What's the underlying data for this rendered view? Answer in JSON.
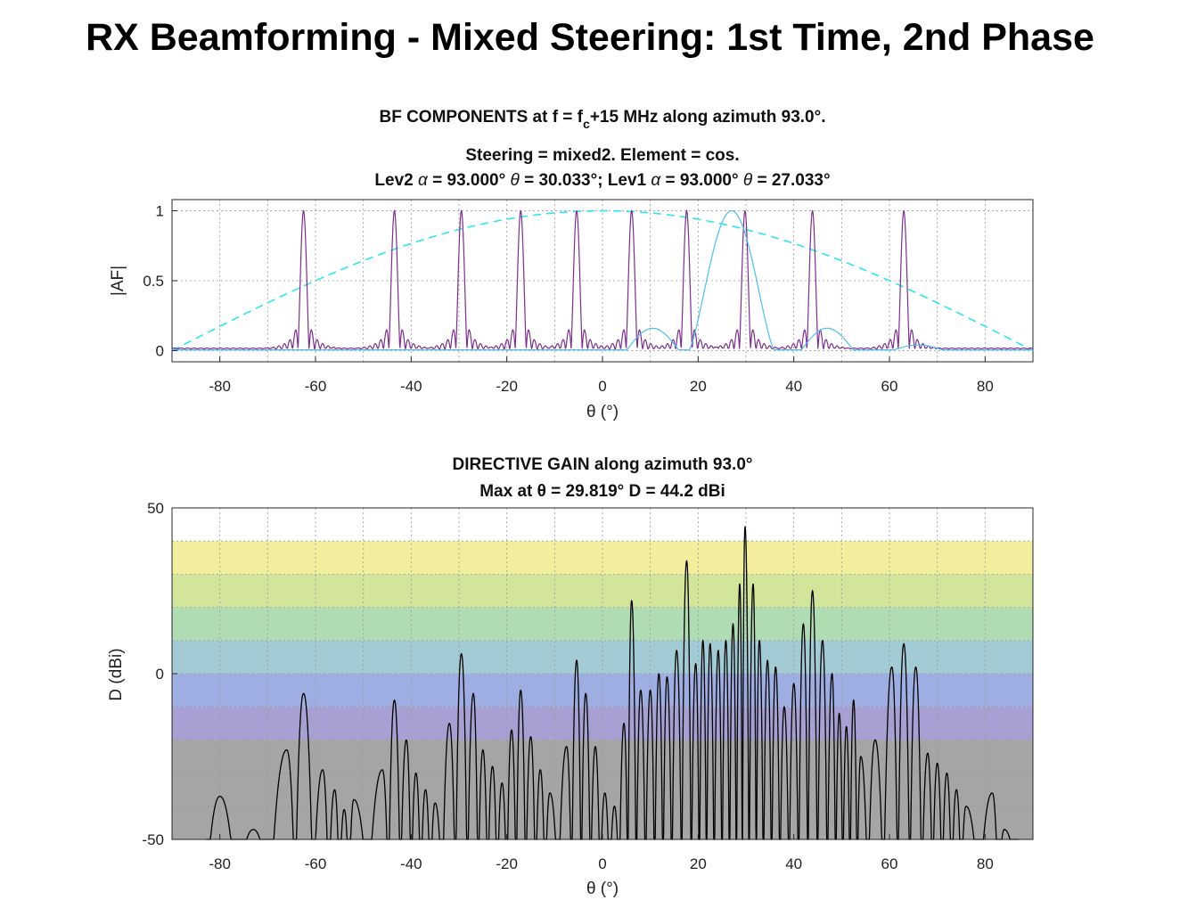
{
  "page": {
    "title": "RX Beamforming - Mixed Steering: 1st Time, 2nd Phase"
  },
  "colors": {
    "purple": "#7e2f8e",
    "cyan_solid": "#4dbeee",
    "cyan_dashed": "#2ee6f0",
    "black": "#000000",
    "band_colors": [
      "#f2ee9d",
      "#d2e59a",
      "#b0dcb4",
      "#a2cbd6",
      "#9eaee2",
      "#a7a1d3",
      "#a5a5a5"
    ]
  },
  "chart_data": [
    {
      "id": "af",
      "type": "line",
      "title_lines": [
        "BF COMPONENTS at f = f_c+15 MHz along azimuth 93.0°.",
        "Steering = mixed2. Element = cos.",
        "Lev2  α = 93.000° θ = 30.033°;  Lev1  α = 93.000° θ = 27.033°"
      ],
      "xlabel": "θ (°)",
      "ylabel": "|AF|",
      "xlim": [
        -90,
        90
      ],
      "ylim": [
        -0.08,
        1.08
      ],
      "xticks": [
        -80,
        -60,
        -40,
        -20,
        0,
        20,
        40,
        60,
        80
      ],
      "yticks": [
        0,
        0.5,
        1
      ],
      "ytick_labels": [
        "0",
        "0.5",
        "1"
      ],
      "grid": true,
      "series": [
        {
          "style": "solid",
          "color": "purple",
          "description": "Lev2 array factor: grating lobes of unit height",
          "lobe_peaks": [
            -62.5,
            -43.5,
            -29.5,
            -17.1,
            -5.4,
            6.1,
            17.6,
            29.8,
            43.9,
            63.0
          ],
          "peak_value": 1.0,
          "sidelobe_level": 0.15
        },
        {
          "style": "solid",
          "color": "cyan_solid",
          "description": "Lev1 array factor",
          "main_lobe_peak": 27.0,
          "main_lobe_nulls": [
            18,
            36
          ],
          "sidelobes": [
            [
              10.5,
              0.16
            ],
            [
              47,
              0.16
            ],
            [
              66,
              0.04
            ]
          ]
        },
        {
          "style": "dashed",
          "color": "cyan_dashed",
          "description": "Element pattern cos(θ)",
          "x": [
            -90,
            -60,
            -30,
            0,
            30,
            60,
            90
          ],
          "y": [
            0.0,
            0.5,
            0.866,
            1.0,
            0.866,
            0.5,
            0.0
          ]
        }
      ]
    },
    {
      "id": "gain",
      "type": "line",
      "title_lines": [
        "DIRECTIVE GAIN along azimuth 93.0°",
        "Max at θ = 29.819° D = 44.2 dBi"
      ],
      "xlabel": "θ (°)",
      "ylabel": "D (dBi)",
      "xlim": [
        -90,
        90
      ],
      "ylim": [
        -50,
        50
      ],
      "xticks": [
        -80,
        -60,
        -40,
        -20,
        0,
        20,
        40,
        60,
        80
      ],
      "yticks": [
        -50,
        0,
        50
      ],
      "grid": true,
      "bands": [
        {
          "from": 30,
          "to": 40,
          "color": "#f2ee9d"
        },
        {
          "from": 20,
          "to": 30,
          "color": "#d2e59a"
        },
        {
          "from": 10,
          "to": 20,
          "color": "#b0dcb4"
        },
        {
          "from": 0,
          "to": 10,
          "color": "#a2cbd6"
        },
        {
          "from": -10,
          "to": 0,
          "color": "#9eaee2"
        },
        {
          "from": -20,
          "to": -10,
          "color": "#a7a1d3"
        },
        {
          "from": -50,
          "to": -20,
          "color": "#a5a5a5"
        }
      ],
      "max_point": {
        "x": 29.819,
        "y": 44.2
      },
      "lobe_peaks": [
        [
          -80,
          -37
        ],
        [
          -73,
          -47
        ],
        [
          -66,
          -23
        ],
        [
          -62.5,
          -6
        ],
        [
          -58.5,
          -29
        ],
        [
          -56,
          -35
        ],
        [
          -54,
          -41
        ],
        [
          -52,
          -38
        ],
        [
          -46,
          -29
        ],
        [
          -43.5,
          -8
        ],
        [
          -41,
          -20
        ],
        [
          -39,
          -30
        ],
        [
          -37,
          -35
        ],
        [
          -35,
          -39
        ],
        [
          -32,
          -15
        ],
        [
          -29.5,
          6
        ],
        [
          -27,
          -6
        ],
        [
          -25,
          -23
        ],
        [
          -23,
          -28
        ],
        [
          -21,
          -33
        ],
        [
          -19,
          -17
        ],
        [
          -17.1,
          -5
        ],
        [
          -15,
          -19
        ],
        [
          -13,
          -29
        ],
        [
          -11,
          -36
        ],
        [
          -7.5,
          -22
        ],
        [
          -5.4,
          4
        ],
        [
          -3.5,
          -6
        ],
        [
          -1.5,
          -22
        ],
        [
          0.5,
          -36
        ],
        [
          2.5,
          -40
        ],
        [
          4.5,
          -15
        ],
        [
          6.1,
          22
        ],
        [
          8,
          -5
        ],
        [
          10,
          -5
        ],
        [
          11.8,
          0
        ],
        [
          13.5,
          -1
        ],
        [
          15.5,
          7
        ],
        [
          17.6,
          34
        ],
        [
          19.5,
          3
        ],
        [
          21,
          10
        ],
        [
          22.5,
          9
        ],
        [
          24.2,
          7
        ],
        [
          25.8,
          10
        ],
        [
          27.3,
          15
        ],
        [
          28.7,
          27
        ],
        [
          29.8,
          44.2
        ],
        [
          31.5,
          27
        ],
        [
          32.8,
          10
        ],
        [
          34.5,
          4
        ],
        [
          36.2,
          2
        ],
        [
          38,
          -10
        ],
        [
          40,
          -3
        ],
        [
          42,
          15
        ],
        [
          43.9,
          25
        ],
        [
          46,
          10
        ],
        [
          48,
          0
        ],
        [
          49.5,
          -12
        ],
        [
          51,
          -16
        ],
        [
          52.5,
          -8
        ],
        [
          54,
          -25
        ],
        [
          57,
          -20
        ],
        [
          60.5,
          2
        ],
        [
          63,
          9
        ],
        [
          65.5,
          2
        ],
        [
          68,
          -24
        ],
        [
          70,
          -27
        ],
        [
          72,
          -30
        ],
        [
          74,
          -35
        ],
        [
          76,
          -40
        ],
        [
          81.5,
          -36
        ],
        [
          84,
          -47
        ]
      ]
    }
  ]
}
